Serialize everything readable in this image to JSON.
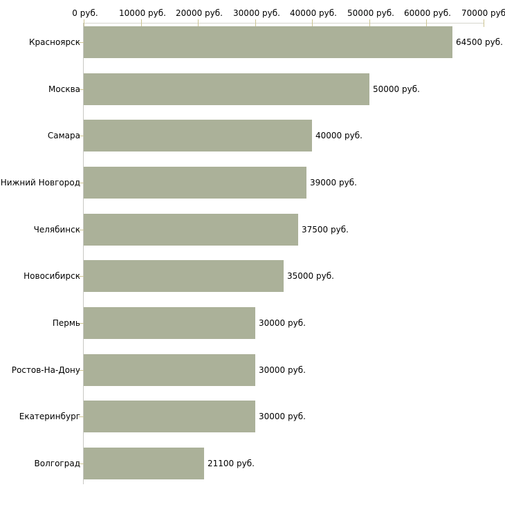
{
  "chart_data": {
    "type": "bar",
    "orientation": "horizontal",
    "categories": [
      "Красноярск",
      "Москва",
      "Самара",
      "Нижний Новгород",
      "Челябинск",
      "Новосибирск",
      "Пермь",
      "Ростов-На-Дону",
      "Екатеринбург",
      "Волгоград"
    ],
    "values": [
      64500,
      50000,
      40000,
      39000,
      37500,
      35000,
      30000,
      30000,
      30000,
      21100
    ],
    "value_labels": [
      "64500 руб.",
      "50000 руб.",
      "40000 руб.",
      "39000 руб.",
      "37500 руб.",
      "35000 руб.",
      "30000 руб.",
      "30000 руб.",
      "30000 руб.",
      "21100 руб."
    ],
    "x_axis": {
      "position": "top",
      "min": 0,
      "max": 70000,
      "ticks": [
        0,
        10000,
        20000,
        30000,
        40000,
        50000,
        60000,
        70000
      ],
      "tick_labels": [
        "0 руб.",
        "10000 руб.",
        "20000 руб.",
        "30000 руб.",
        "40000 руб.",
        "50000 руб.",
        "60000 руб.",
        "70000 руб."
      ]
    },
    "colors": {
      "bar": "#abb199",
      "tick": "#ccc492",
      "x_axis_line": "#d6d6ce",
      "y_axis_line": "#c8c8c4",
      "text": "#000000",
      "background": "#ffffff"
    },
    "grid": false,
    "legend": false
  }
}
